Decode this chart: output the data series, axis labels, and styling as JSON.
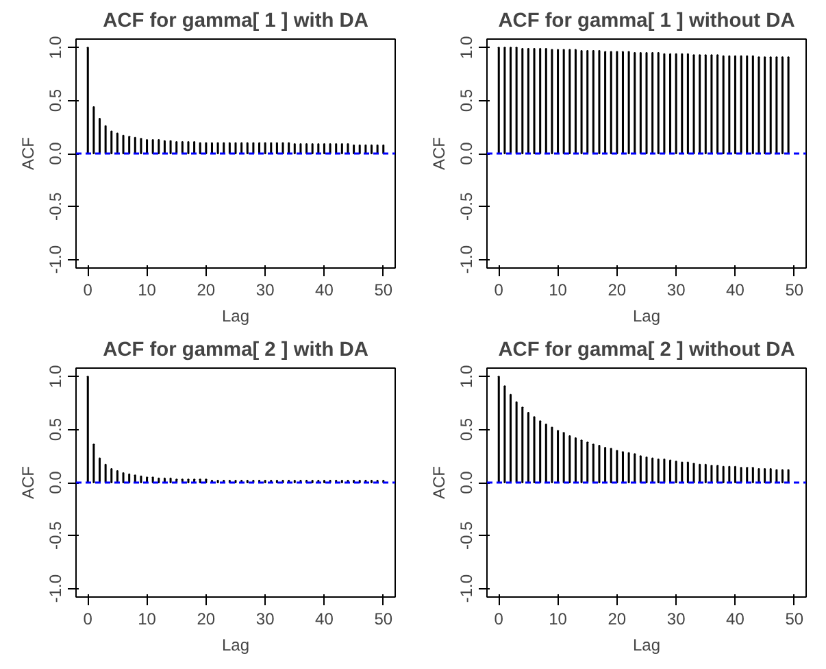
{
  "chart_data": [
    {
      "type": "bar",
      "title": "ACF for gamma[ 1 ] with DA",
      "xlabel": "Lag",
      "ylabel": "ACF",
      "color": "#000000",
      "grid": false,
      "x": [
        0,
        1,
        2,
        3,
        4,
        5,
        6,
        7,
        8,
        9,
        10,
        11,
        12,
        13,
        14,
        15,
        16,
        17,
        18,
        19,
        20,
        21,
        22,
        23,
        24,
        25,
        26,
        27,
        28,
        29,
        30,
        31,
        32,
        33,
        34,
        35,
        36,
        37,
        38,
        39,
        40,
        41,
        42,
        43,
        44,
        45,
        46,
        47,
        48,
        49,
        50
      ],
      "values": [
        1.0,
        0.44,
        0.33,
        0.26,
        0.21,
        0.19,
        0.17,
        0.16,
        0.15,
        0.14,
        0.13,
        0.13,
        0.13,
        0.12,
        0.12,
        0.11,
        0.11,
        0.11,
        0.11,
        0.1,
        0.1,
        0.1,
        0.1,
        0.1,
        0.1,
        0.1,
        0.1,
        0.1,
        0.1,
        0.1,
        0.1,
        0.1,
        0.1,
        0.1,
        0.1,
        0.09,
        0.09,
        0.09,
        0.09,
        0.09,
        0.09,
        0.09,
        0.09,
        0.09,
        0.09,
        0.08,
        0.08,
        0.08,
        0.08,
        0.08,
        0.08
      ],
      "xlim": [
        -2,
        52
      ],
      "ylim": [
        -1.08,
        1.08
      ],
      "xticks": [
        0,
        10,
        20,
        30,
        40,
        50
      ],
      "yticks": [
        {
          "value": -1,
          "label": "-1.0"
        },
        {
          "value": -0.5,
          "label": "-0.5"
        },
        {
          "value": 0,
          "label": "0.0"
        },
        {
          "value": 0.5,
          "label": "0.5"
        },
        {
          "value": 1,
          "label": "1.0"
        }
      ],
      "ref_lines": [
        {
          "axis": "y",
          "value": 0,
          "color": "#0000ff",
          "line_style": "dashed"
        }
      ]
    },
    {
      "type": "bar",
      "title": "ACF for gamma[ 1 ] without DA",
      "xlabel": "Lag",
      "ylabel": "ACF",
      "color": "#000000",
      "grid": false,
      "x": [
        0,
        1,
        2,
        3,
        4,
        5,
        6,
        7,
        8,
        9,
        10,
        11,
        12,
        13,
        14,
        15,
        16,
        17,
        18,
        19,
        20,
        21,
        22,
        23,
        24,
        25,
        26,
        27,
        28,
        29,
        30,
        31,
        32,
        33,
        34,
        35,
        36,
        37,
        38,
        39,
        40,
        41,
        42,
        43,
        44,
        45,
        46,
        47,
        48,
        49
      ],
      "values": [
        1.0,
        1.0,
        1.0,
        1.0,
        0.99,
        0.99,
        0.99,
        0.99,
        0.99,
        0.98,
        0.98,
        0.98,
        0.98,
        0.98,
        0.97,
        0.97,
        0.97,
        0.97,
        0.96,
        0.96,
        0.96,
        0.96,
        0.96,
        0.95,
        0.95,
        0.95,
        0.95,
        0.95,
        0.94,
        0.94,
        0.94,
        0.94,
        0.94,
        0.93,
        0.93,
        0.93,
        0.93,
        0.93,
        0.92,
        0.92,
        0.92,
        0.92,
        0.92,
        0.92,
        0.91,
        0.91,
        0.91,
        0.91,
        0.91,
        0.91
      ],
      "xlim": [
        -2,
        52
      ],
      "ylim": [
        -1.08,
        1.08
      ],
      "xticks": [
        0,
        10,
        20,
        30,
        40,
        50
      ],
      "yticks": [
        {
          "value": -1,
          "label": "-1.0"
        },
        {
          "value": -0.5,
          "label": "-0.5"
        },
        {
          "value": 0,
          "label": "0.0"
        },
        {
          "value": 0.5,
          "label": "0.5"
        },
        {
          "value": 1,
          "label": "1.0"
        }
      ],
      "ref_lines": [
        {
          "axis": "y",
          "value": 0,
          "color": "#0000ff",
          "line_style": "dashed"
        }
      ]
    },
    {
      "type": "bar",
      "title": "ACF for gamma[ 2 ] with DA",
      "xlabel": "Lag",
      "ylabel": "ACF",
      "color": "#000000",
      "grid": false,
      "x": [
        0,
        1,
        2,
        3,
        4,
        5,
        6,
        7,
        8,
        9,
        10,
        11,
        12,
        13,
        14,
        15,
        16,
        17,
        18,
        19,
        20,
        21,
        22,
        23,
        24,
        25,
        26,
        27,
        28,
        29,
        30,
        31,
        32,
        33,
        34,
        35,
        36,
        37,
        38,
        39,
        40,
        41,
        42,
        43,
        44,
        45,
        46,
        47,
        48,
        49,
        50
      ],
      "values": [
        1.0,
        0.36,
        0.23,
        0.17,
        0.13,
        0.11,
        0.09,
        0.08,
        0.07,
        0.06,
        0.05,
        0.05,
        0.04,
        0.04,
        0.04,
        0.03,
        0.03,
        0.03,
        0.03,
        0.03,
        0.03,
        0.02,
        0.02,
        0.02,
        0.02,
        0.02,
        0.02,
        0.02,
        0.02,
        0.02,
        0.02,
        0.02,
        0.02,
        0.02,
        0.02,
        0.02,
        0.02,
        0.02,
        0.02,
        0.02,
        0.02,
        0.02,
        0.02,
        0.02,
        0.02,
        0.02,
        0.02,
        0.02,
        0.02,
        0.02,
        0.02
      ],
      "xlim": [
        -2,
        52
      ],
      "ylim": [
        -1.08,
        1.08
      ],
      "xticks": [
        0,
        10,
        20,
        30,
        40,
        50
      ],
      "yticks": [
        {
          "value": -1,
          "label": "-1.0"
        },
        {
          "value": -0.5,
          "label": "-0.5"
        },
        {
          "value": 0,
          "label": "0.0"
        },
        {
          "value": 0.5,
          "label": "0.5"
        },
        {
          "value": 1,
          "label": "1.0"
        }
      ],
      "ref_lines": [
        {
          "axis": "y",
          "value": 0,
          "color": "#0000ff",
          "line_style": "dashed"
        }
      ]
    },
    {
      "type": "bar",
      "title": "ACF for gamma[ 2 ] without DA",
      "xlabel": "Lag",
      "ylabel": "ACF",
      "color": "#000000",
      "grid": false,
      "x": [
        0,
        1,
        2,
        3,
        4,
        5,
        6,
        7,
        8,
        9,
        10,
        11,
        12,
        13,
        14,
        15,
        16,
        17,
        18,
        19,
        20,
        21,
        22,
        23,
        24,
        25,
        26,
        27,
        28,
        29,
        30,
        31,
        32,
        33,
        34,
        35,
        36,
        37,
        38,
        39,
        40,
        41,
        42,
        43,
        44,
        45,
        46,
        47,
        48,
        49
      ],
      "values": [
        1.0,
        0.91,
        0.83,
        0.76,
        0.71,
        0.66,
        0.62,
        0.58,
        0.55,
        0.52,
        0.49,
        0.47,
        0.44,
        0.42,
        0.4,
        0.38,
        0.36,
        0.35,
        0.33,
        0.32,
        0.3,
        0.29,
        0.28,
        0.27,
        0.25,
        0.24,
        0.23,
        0.22,
        0.22,
        0.21,
        0.2,
        0.19,
        0.19,
        0.18,
        0.17,
        0.17,
        0.16,
        0.16,
        0.15,
        0.15,
        0.15,
        0.14,
        0.14,
        0.14,
        0.13,
        0.13,
        0.13,
        0.12,
        0.12,
        0.12
      ],
      "xlim": [
        -2,
        52
      ],
      "ylim": [
        -1.08,
        1.08
      ],
      "xticks": [
        0,
        10,
        20,
        30,
        40,
        50
      ],
      "yticks": [
        {
          "value": -1,
          "label": "-1.0"
        },
        {
          "value": -0.5,
          "label": "-0.5"
        },
        {
          "value": 0,
          "label": "0.0"
        },
        {
          "value": 0.5,
          "label": "0.5"
        },
        {
          "value": 1,
          "label": "1.0"
        }
      ],
      "ref_lines": [
        {
          "axis": "y",
          "value": 0,
          "color": "#0000ff",
          "line_style": "dashed"
        }
      ]
    }
  ]
}
